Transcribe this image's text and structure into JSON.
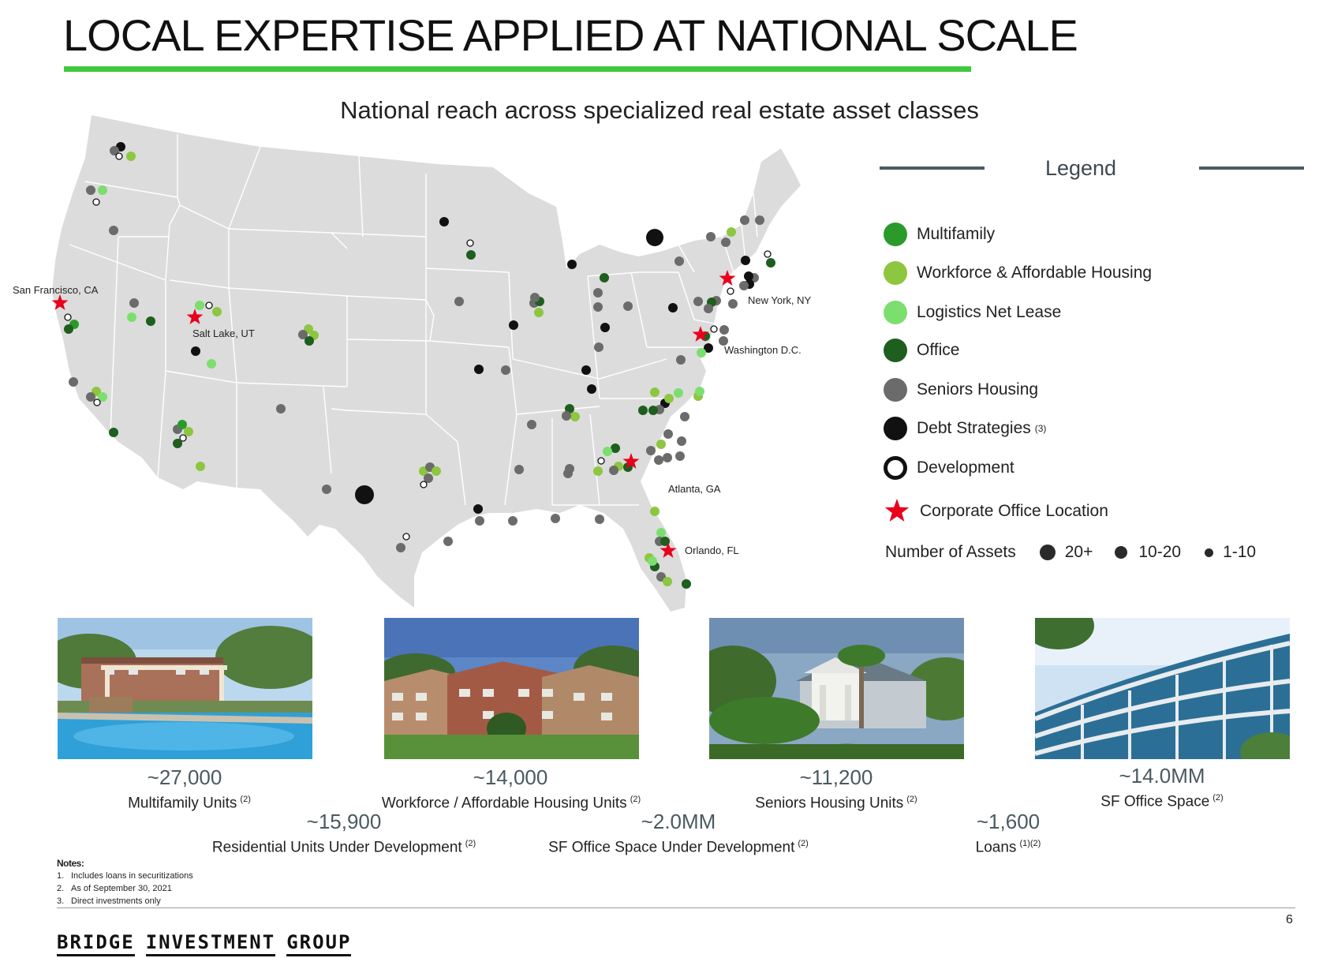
{
  "title": "LOCAL EXPERTISE APPLIED AT NATIONAL SCALE",
  "subtitle": "National reach across specialized real estate asset classes",
  "colors": {
    "accent": "#3ec93e",
    "map_fill": "#dcdcdc",
    "multifamily": "#2a9a2a",
    "workforce": "#8dc63f",
    "logistics": "#7cde6e",
    "office": "#1e5e1e",
    "seniors": "#6b6b6b",
    "debt": "#111111",
    "development": "#ffffff",
    "corporate": "#e8001c"
  },
  "map": {
    "city_labels": [
      {
        "key": "sf",
        "text": "San Francisco, CA"
      },
      {
        "key": "slc",
        "text": "Salt Lake, UT"
      },
      {
        "key": "ny",
        "text": "New York, NY"
      },
      {
        "key": "dc",
        "text": "Washington D.C."
      },
      {
        "key": "atl",
        "text": "Atlanta, GA"
      },
      {
        "key": "orl",
        "text": "Orlando, FL"
      }
    ]
  },
  "legend": {
    "title": "Legend",
    "items": [
      {
        "label": "Multifamily",
        "color_key": "multifamily",
        "icon": "circle",
        "sup": ""
      },
      {
        "label": "Workforce & Affordable Housing",
        "color_key": "workforce",
        "icon": "circle",
        "sup": ""
      },
      {
        "label": "Logistics Net Lease",
        "color_key": "logistics",
        "icon": "circle",
        "sup": ""
      },
      {
        "label": "Office",
        "color_key": "office",
        "icon": "circle",
        "sup": ""
      },
      {
        "label": "Seniors Housing",
        "color_key": "seniors",
        "icon": "circle",
        "sup": ""
      },
      {
        "label": "Debt Strategies",
        "color_key": "debt",
        "icon": "circle",
        "sup": "(3)"
      },
      {
        "label": "Development",
        "color_key": "development",
        "icon": "ring",
        "sup": ""
      },
      {
        "label": "Corporate Office Location",
        "color_key": "corporate",
        "icon": "star",
        "sup": ""
      }
    ],
    "number_of_assets": {
      "label": "Number of Assets",
      "sizes": [
        "20+",
        "10-20",
        "1-10"
      ]
    }
  },
  "photos": [
    {
      "icon": "pool-photo"
    },
    {
      "icon": "apartment-photo"
    },
    {
      "icon": "seniors-clubhouse-photo"
    },
    {
      "icon": "office-building-photo"
    }
  ],
  "stats": {
    "multifamily": {
      "value": "~27,000",
      "label": "Multifamily Units",
      "sup": "(2)"
    },
    "workforce": {
      "value": "~14,000",
      "label": "Workforce / Affordable Housing Units",
      "sup": "(2)"
    },
    "seniors": {
      "value": "~11,200",
      "label": "Seniors Housing Units",
      "sup": "(2)"
    },
    "office": {
      "value": "~14.0MM",
      "label": "SF Office Space",
      "sup": "(2)"
    },
    "residential_dev": {
      "value": "~15,900",
      "label": "Residential Units Under Development",
      "sup": "(2)"
    },
    "office_dev": {
      "value": "~2.0MM",
      "label": "SF Office Space Under Development",
      "sup": "(2)"
    },
    "loans": {
      "value": "~1,600",
      "label": "Loans",
      "sup": "(1)(2)"
    }
  },
  "notes": {
    "heading": "Notes:",
    "items": [
      {
        "num": "1.",
        "text": "Includes loans in securitizations"
      },
      {
        "num": "2.",
        "text": "As of September 30, 2021"
      },
      {
        "num": "3.",
        "text": "Direct investments only"
      }
    ]
  },
  "page_number": "6",
  "company": {
    "words": [
      "BRIDGE",
      "INVESTMENT",
      "GROUP"
    ]
  }
}
